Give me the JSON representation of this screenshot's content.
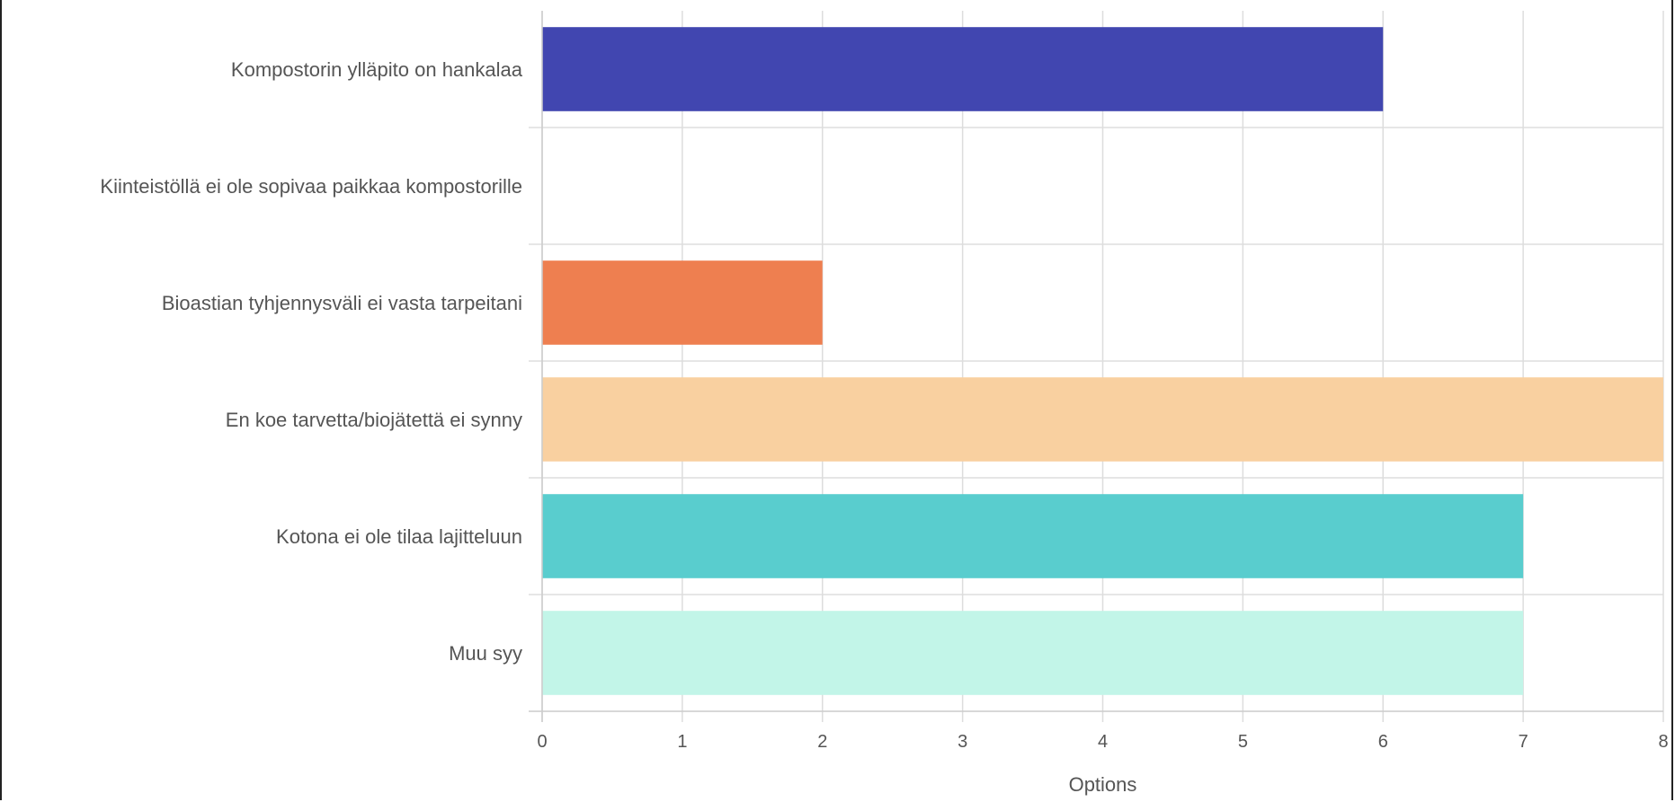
{
  "chart_data": {
    "type": "bar",
    "orientation": "horizontal",
    "categories": [
      "Kompostorin ylläpito on hankalaa",
      "Kiinteistöllä ei ole sopivaa paikkaa kompostorille",
      "Bioastian tyhjennysväli ei vasta tarpeitani",
      "En koe tarvetta/biojätettä ei synny",
      "Kotona ei ole tilaa lajitteluun",
      "Muu syy"
    ],
    "values": [
      6,
      0,
      2,
      8,
      7,
      7
    ],
    "colors": [
      "#4146b0",
      "#4146b0",
      "#ee7f50",
      "#f9d0a0",
      "#59cdce",
      "#c2f5e8"
    ],
    "xlabel": "Options",
    "ylabel": "",
    "xlim": [
      0,
      8
    ],
    "xticks": [
      "0",
      "1",
      "2",
      "3",
      "4",
      "5",
      "6",
      "7",
      "8"
    ],
    "grid": true
  }
}
